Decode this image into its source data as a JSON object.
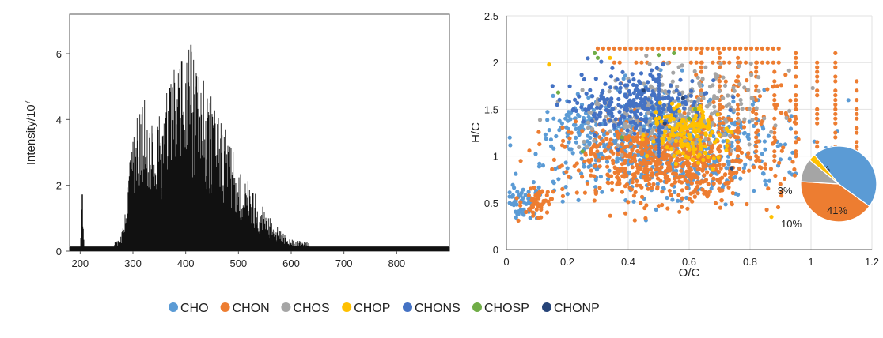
{
  "chart_data": [
    {
      "type": "line",
      "ylabel_base": "Intensity/10",
      "ylabel_exp": "7",
      "xlim": [
        180,
        900
      ],
      "ylim": [
        0,
        7.2
      ],
      "xticks": [
        200,
        300,
        400,
        500,
        600,
        700,
        800
      ],
      "yticks": [
        0,
        2,
        4,
        6
      ],
      "grid": false,
      "color": "#111111",
      "envelope": {
        "x": [
          180,
          200,
          204,
          208,
          260,
          280,
          300,
          320,
          340,
          360,
          380,
          400,
          410,
          420,
          440,
          460,
          480,
          500,
          520,
          540,
          560,
          580,
          600,
          620,
          650,
          700,
          800,
          900
        ],
        "y": [
          0.12,
          0.12,
          1.72,
          0.15,
          0.15,
          0.6,
          3.6,
          4.7,
          3.6,
          4.6,
          5.6,
          5.9,
          6.27,
          5.4,
          5.1,
          4.1,
          3.6,
          2.4,
          2.1,
          1.5,
          1.0,
          0.6,
          0.35,
          0.3,
          0.2,
          0.17,
          0.15,
          0.12
        ]
      }
    },
    {
      "type": "scatter",
      "xlabel": "O/C",
      "ylabel": "H/C",
      "xlim": [
        0,
        1.2
      ],
      "ylim": [
        0,
        2.5
      ],
      "xticks": [
        0,
        0.2,
        0.4,
        0.6,
        0.8,
        1,
        1.2
      ],
      "yticks": [
        0,
        0.5,
        1,
        1.5,
        2,
        2.5
      ],
      "grid": true,
      "series": [
        {
          "name": "CHO",
          "color": "#5b9bd5"
        },
        {
          "name": "CHON",
          "color": "#ed7d31"
        },
        {
          "name": "CHOS",
          "color": "#a5a5a5"
        },
        {
          "name": "CHOP",
          "color": "#ffc000"
        },
        {
          "name": "CHONS",
          "color": "#4472c4"
        },
        {
          "name": "CHOSP",
          "color": "#70ad47"
        },
        {
          "name": "CHONP",
          "color": "#264478"
        }
      ],
      "inset_pie": {
        "slices": [
          {
            "label": "46%",
            "value": 46,
            "color": "#5b9bd5"
          },
          {
            "label": "41%",
            "value": 41,
            "color": "#ed7d31"
          },
          {
            "label": "10%",
            "value": 10,
            "color": "#a5a5a5"
          },
          {
            "label": "3%",
            "value": 3,
            "color": "#ffc000"
          }
        ]
      }
    }
  ],
  "legend": [
    {
      "name": "CHO",
      "color": "#5b9bd5"
    },
    {
      "name": "CHON",
      "color": "#ed7d31"
    },
    {
      "name": "CHOS",
      "color": "#a5a5a5"
    },
    {
      "name": "CHOP",
      "color": "#ffc000"
    },
    {
      "name": "CHONS",
      "color": "#4472c4"
    },
    {
      "name": "CHOSP",
      "color": "#70ad47"
    },
    {
      "name": "CHONP",
      "color": "#264478"
    }
  ]
}
